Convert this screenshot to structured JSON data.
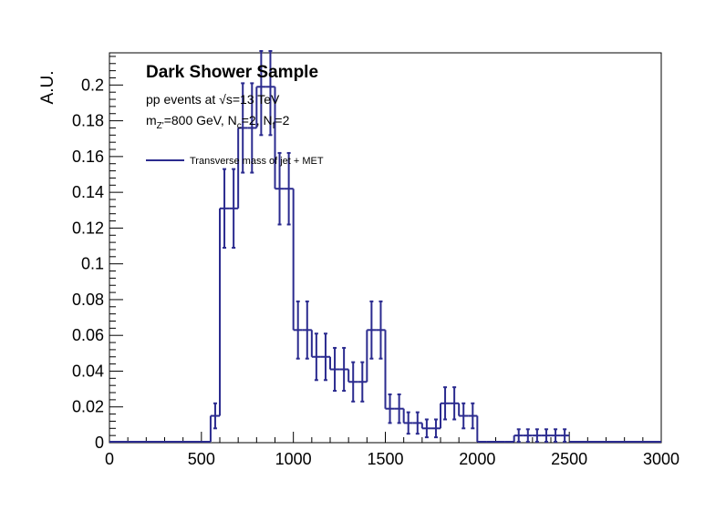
{
  "chart_data": {
    "type": "histogram",
    "title": "Dark Shower Sample",
    "line1": {
      "prefix": "pp events at ",
      "sqrt": "√s",
      "suffix": "=13 TeV"
    },
    "line2": {
      "m": "m",
      "m_sub": "Z'",
      "m_rest": "=800 GeV, N",
      "nc_sub": "c",
      "nc_rest": "=2, N",
      "nf_sub": "f",
      "nf_rest": "=2"
    },
    "ylabel": "A.U.",
    "xlabel": "",
    "xlim": [
      0,
      3000
    ],
    "ylim": [
      0,
      0.218
    ],
    "x_ticks": [
      0,
      500,
      1000,
      1500,
      2000,
      2500,
      3000
    ],
    "x_tick_labels": [
      "0",
      "500",
      "1000",
      "1500",
      "2000",
      "2500",
      "3000"
    ],
    "y_ticks": [
      0,
      0.02,
      0.04,
      0.06,
      0.08,
      0.1,
      0.12,
      0.14,
      0.16,
      0.18,
      0.2
    ],
    "y_tick_labels": [
      "0",
      "0.02",
      "0.04",
      "0.06",
      "0.08",
      "0.1",
      "0.12",
      "0.14",
      "0.16",
      "0.18",
      "0.2"
    ],
    "line_color": "#2b2b8f",
    "legend": {
      "label": "Transverse mass of jet + MET",
      "placement": "top-left"
    },
    "series": [
      {
        "name": "Transverse mass of jet + MET",
        "bin_width": 50,
        "bins": [
          {
            "x": 525,
            "y": 0.0,
            "err": 0.0
          },
          {
            "x": 575,
            "y": 0.015,
            "err": 0.007
          },
          {
            "x": 625,
            "y": 0.131,
            "err": 0.022
          },
          {
            "x": 675,
            "y": 0.131,
            "err": 0.022
          },
          {
            "x": 725,
            "y": 0.176,
            "err": 0.025
          },
          {
            "x": 775,
            "y": 0.176,
            "err": 0.025
          },
          {
            "x": 825,
            "y": 0.199,
            "err": 0.027
          },
          {
            "x": 875,
            "y": 0.199,
            "err": 0.027
          },
          {
            "x": 925,
            "y": 0.142,
            "err": 0.02
          },
          {
            "x": 975,
            "y": 0.142,
            "err": 0.02
          },
          {
            "x": 1025,
            "y": 0.063,
            "err": 0.016
          },
          {
            "x": 1075,
            "y": 0.063,
            "err": 0.016
          },
          {
            "x": 1125,
            "y": 0.048,
            "err": 0.013
          },
          {
            "x": 1175,
            "y": 0.048,
            "err": 0.013
          },
          {
            "x": 1225,
            "y": 0.041,
            "err": 0.012
          },
          {
            "x": 1275,
            "y": 0.041,
            "err": 0.012
          },
          {
            "x": 1325,
            "y": 0.034,
            "err": 0.011
          },
          {
            "x": 1375,
            "y": 0.034,
            "err": 0.011
          },
          {
            "x": 1425,
            "y": 0.063,
            "err": 0.016
          },
          {
            "x": 1475,
            "y": 0.063,
            "err": 0.016
          },
          {
            "x": 1525,
            "y": 0.019,
            "err": 0.008
          },
          {
            "x": 1575,
            "y": 0.019,
            "err": 0.008
          },
          {
            "x": 1625,
            "y": 0.011,
            "err": 0.006
          },
          {
            "x": 1675,
            "y": 0.011,
            "err": 0.006
          },
          {
            "x": 1725,
            "y": 0.008,
            "err": 0.005
          },
          {
            "x": 1775,
            "y": 0.008,
            "err": 0.005
          },
          {
            "x": 1825,
            "y": 0.022,
            "err": 0.009
          },
          {
            "x": 1875,
            "y": 0.022,
            "err": 0.009
          },
          {
            "x": 1925,
            "y": 0.015,
            "err": 0.007
          },
          {
            "x": 1975,
            "y": 0.015,
            "err": 0.007
          },
          {
            "x": 2025,
            "y": 0.0,
            "err": 0.0
          },
          {
            "x": 2075,
            "y": 0.0,
            "err": 0.0
          },
          {
            "x": 2125,
            "y": 0.0,
            "err": 0.0
          },
          {
            "x": 2175,
            "y": 0.0,
            "err": 0.0
          },
          {
            "x": 2225,
            "y": 0.004,
            "err": 0.0035
          },
          {
            "x": 2275,
            "y": 0.004,
            "err": 0.0035
          },
          {
            "x": 2325,
            "y": 0.004,
            "err": 0.0035
          },
          {
            "x": 2375,
            "y": 0.004,
            "err": 0.0035
          },
          {
            "x": 2425,
            "y": 0.004,
            "err": 0.0035
          },
          {
            "x": 2475,
            "y": 0.004,
            "err": 0.0035
          }
        ]
      }
    ]
  }
}
